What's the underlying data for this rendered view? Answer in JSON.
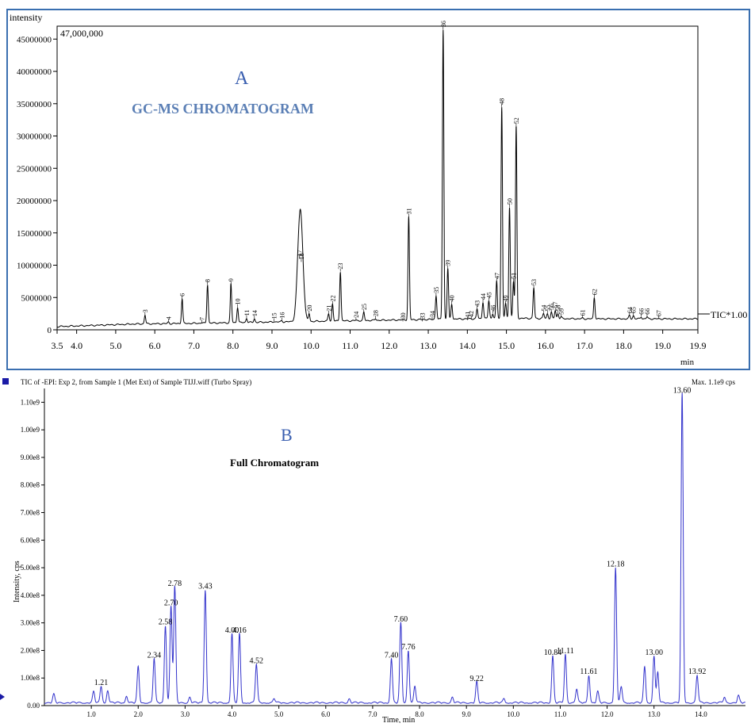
{
  "panel_a": {
    "letter": "A",
    "title": "GC-MS CHROMATOGRAM",
    "ylabel": "intensity",
    "max_label": "47,000,000",
    "trace_label": "TIC*1.00",
    "xunit": "min",
    "accent_color": "#5b7fb5",
    "border_color": "#3a6fb0",
    "yticks": [
      {
        "value": 0,
        "label": "0"
      },
      {
        "value": 5000000,
        "label": "5000000"
      },
      {
        "value": 10000000,
        "label": "10000000"
      },
      {
        "value": 15000000,
        "label": "15000000"
      },
      {
        "value": 20000000,
        "label": "20000000"
      },
      {
        "value": 25000000,
        "label": "25000000"
      },
      {
        "value": 30000000,
        "label": "30000000"
      },
      {
        "value": 35000000,
        "label": "35000000"
      },
      {
        "value": 40000000,
        "label": "40000000"
      },
      {
        "value": 45000000,
        "label": "45000000"
      }
    ],
    "xticks": [
      {
        "value": 3.5,
        "label": "3.5"
      },
      {
        "value": 4.0,
        "label": "4.0"
      },
      {
        "value": 5.0,
        "label": "5.0"
      },
      {
        "value": 6.0,
        "label": "6.0"
      },
      {
        "value": 7.0,
        "label": "7.0"
      },
      {
        "value": 8.0,
        "label": "8.0"
      },
      {
        "value": 9.0,
        "label": "9.0"
      },
      {
        "value": 10.0,
        "label": "10.0"
      },
      {
        "value": 11.0,
        "label": "11.0"
      },
      {
        "value": 12.0,
        "label": "12.0"
      },
      {
        "value": 13.0,
        "label": "13.0"
      },
      {
        "value": 14.0,
        "label": "14.0"
      },
      {
        "value": 15.0,
        "label": "15.0"
      },
      {
        "value": 16.0,
        "label": "16.0"
      },
      {
        "value": 17.0,
        "label": "17.0"
      },
      {
        "value": 18.0,
        "label": "18.0"
      },
      {
        "value": 19.0,
        "label": "19.0"
      },
      {
        "value": 19.9,
        "label": "19.9"
      }
    ]
  },
  "panel_b": {
    "letter": "B",
    "header": "TIC of -EPI: Exp 2, from Sample 1 (Met Ext) of Sample TIJJ.wiff (Turbo Spray)",
    "max_text": "Max. 1.1e9 cps",
    "title": "Full Chromatogram",
    "ylabel": "Intensity, cps",
    "xlabel": "Time, min",
    "line_color": "#3333cc",
    "yticks": [
      {
        "value": 0,
        "label": "0.00"
      },
      {
        "value": 100000000,
        "label": "1.00e8"
      },
      {
        "value": 200000000,
        "label": "2.00e8"
      },
      {
        "value": 300000000,
        "label": "3.00e8"
      },
      {
        "value": 400000000,
        "label": "4.00e8"
      },
      {
        "value": 500000000,
        "label": "5.00e8"
      },
      {
        "value": 600000000,
        "label": "6.00e8"
      },
      {
        "value": 700000000,
        "label": "7.00e8"
      },
      {
        "value": 800000000,
        "label": "8.00e8"
      },
      {
        "value": 900000000,
        "label": "9.00e8"
      },
      {
        "value": 1000000000,
        "label": "1.00e9"
      },
      {
        "value": 1100000000,
        "label": "1.10e9"
      }
    ],
    "xticks": [
      {
        "value": 1.0,
        "label": "1.0"
      },
      {
        "value": 2.0,
        "label": "2.0"
      },
      {
        "value": 3.0,
        "label": "3.0"
      },
      {
        "value": 4.0,
        "label": "4.0"
      },
      {
        "value": 5.0,
        "label": "5.0"
      },
      {
        "value": 6.0,
        "label": "6.0"
      },
      {
        "value": 7.0,
        "label": "7.0"
      },
      {
        "value": 8.0,
        "label": "8.0"
      },
      {
        "value": 9.0,
        "label": "9.0"
      },
      {
        "value": 10.0,
        "label": "10.0"
      },
      {
        "value": 11.0,
        "label": "11.0"
      },
      {
        "value": 12.0,
        "label": "12.0"
      },
      {
        "value": 13.0,
        "label": "13.0"
      },
      {
        "value": 14.0,
        "label": "14.0"
      }
    ]
  },
  "chart_data": [
    {
      "type": "line",
      "title": "GC-MS CHROMATOGRAM",
      "xlabel": "min",
      "ylabel": "intensity",
      "xlim": [
        3.5,
        19.9
      ],
      "ylim": [
        0,
        47000000
      ],
      "grid": false,
      "baseline": [
        [
          3.5,
          500000
        ],
        [
          4.5,
          700000
        ],
        [
          5.5,
          900000
        ],
        [
          7.0,
          1000000
        ],
        [
          9.0,
          1200000
        ],
        [
          11.0,
          1400000
        ],
        [
          13.0,
          1600000
        ],
        [
          15.0,
          1800000
        ],
        [
          17.0,
          1700000
        ],
        [
          19.9,
          1700000
        ]
      ],
      "peaks": [
        {
          "label": "3",
          "x": 5.75,
          "y": 2300000
        },
        {
          "label": "4",
          "x": 6.35,
          "y": 1200000
        },
        {
          "label": "6",
          "x": 6.7,
          "y": 4800000
        },
        {
          "label": "7",
          "x": 7.2,
          "y": 1100000
        },
        {
          "label": "8",
          "x": 7.35,
          "y": 7000000
        },
        {
          "label": "9",
          "x": 7.95,
          "y": 7100000
        },
        {
          "label": "10",
          "x": 8.12,
          "y": 3500000
        },
        {
          "label": "11",
          "x": 8.35,
          "y": 1800000
        },
        {
          "label": "14",
          "x": 8.55,
          "y": 1700000
        },
        {
          "label": "15",
          "x": 9.05,
          "y": 1300000
        },
        {
          "label": "16",
          "x": 9.25,
          "y": 1400000
        },
        {
          "label": "17",
          "x": 9.7,
          "y": 11000000
        },
        {
          "label": "18",
          "x": 9.75,
          "y": 10500000
        },
        {
          "label": "20",
          "x": 9.95,
          "y": 2500000
        },
        {
          "label": "21",
          "x": 10.45,
          "y": 2500000
        },
        {
          "label": "22",
          "x": 10.55,
          "y": 4000000
        },
        {
          "label": "23",
          "x": 10.75,
          "y": 9000000
        },
        {
          "label": "24",
          "x": 11.15,
          "y": 1500000
        },
        {
          "label": "25",
          "x": 11.35,
          "y": 2700000
        },
        {
          "label": "28",
          "x": 11.65,
          "y": 1700000
        },
        {
          "label": "30",
          "x": 12.35,
          "y": 1300000
        },
        {
          "label": "31",
          "x": 12.5,
          "y": 17500000
        },
        {
          "label": "33",
          "x": 12.85,
          "y": 1300000
        },
        {
          "label": "34",
          "x": 13.1,
          "y": 1600000
        },
        {
          "label": "35",
          "x": 13.2,
          "y": 5300000
        },
        {
          "label": "36",
          "x": 13.38,
          "y": 46500000
        },
        {
          "label": "39",
          "x": 13.5,
          "y": 9500000
        },
        {
          "label": "40",
          "x": 13.6,
          "y": 4000000
        },
        {
          "label": "41",
          "x": 14.0,
          "y": 1500000
        },
        {
          "label": "42",
          "x": 14.1,
          "y": 1600000
        },
        {
          "label": "43",
          "x": 14.25,
          "y": 3200000
        },
        {
          "label": "44",
          "x": 14.4,
          "y": 4300000
        },
        {
          "label": "45",
          "x": 14.55,
          "y": 4500000
        },
        {
          "label": "46",
          "x": 14.65,
          "y": 2500000
        },
        {
          "label": "47",
          "x": 14.75,
          "y": 7500000
        },
        {
          "label": "48",
          "x": 14.88,
          "y": 34500000
        },
        {
          "label": "49",
          "x": 14.98,
          "y": 4000000
        },
        {
          "label": "50",
          "x": 15.08,
          "y": 19000000
        },
        {
          "label": "51",
          "x": 15.18,
          "y": 7500000
        },
        {
          "label": "52",
          "x": 15.25,
          "y": 31500000
        },
        {
          "label": "53",
          "x": 15.7,
          "y": 6500000
        },
        {
          "label": "54",
          "x": 15.95,
          "y": 2500000
        },
        {
          "label": "55",
          "x": 16.05,
          "y": 2500000
        },
        {
          "label": "56",
          "x": 16.15,
          "y": 2700000
        },
        {
          "label": "57",
          "x": 16.25,
          "y": 3000000
        },
        {
          "label": "58",
          "x": 16.32,
          "y": 2500000
        },
        {
          "label": "59",
          "x": 16.4,
          "y": 2000000
        },
        {
          "label": "61",
          "x": 16.95,
          "y": 1800000
        },
        {
          "label": "62",
          "x": 17.25,
          "y": 5000000
        },
        {
          "label": "64",
          "x": 18.15,
          "y": 2200000
        },
        {
          "label": "65",
          "x": 18.25,
          "y": 2200000
        },
        {
          "label": "66",
          "x": 18.45,
          "y": 2000000
        },
        {
          "label": "66",
          "x": 18.6,
          "y": 2000000
        },
        {
          "label": "67",
          "x": 18.9,
          "y": 1700000
        }
      ]
    },
    {
      "type": "line",
      "title": "Full Chromatogram",
      "xlabel": "Time, min",
      "ylabel": "Intensity, cps",
      "xlim": [
        0,
        14.95
      ],
      "ylim": [
        0,
        1150000000
      ],
      "grid": false,
      "peaks": [
        {
          "x": 0.2,
          "y": 30000000,
          "label": ""
        },
        {
          "x": 1.05,
          "y": 40000000,
          "label": ""
        },
        {
          "x": 1.21,
          "y": 60000000,
          "label": "1.21"
        },
        {
          "x": 1.35,
          "y": 45000000,
          "label": ""
        },
        {
          "x": 1.75,
          "y": 25000000,
          "label": ""
        },
        {
          "x": 2.0,
          "y": 130000000,
          "label": ""
        },
        {
          "x": 2.34,
          "y": 160000000,
          "label": "2.34"
        },
        {
          "x": 2.58,
          "y": 280000000,
          "label": "2.58"
        },
        {
          "x": 2.7,
          "y": 350000000,
          "label": "2.70"
        },
        {
          "x": 2.78,
          "y": 420000000,
          "label": "2.78"
        },
        {
          "x": 3.1,
          "y": 20000000,
          "label": ""
        },
        {
          "x": 3.43,
          "y": 410000000,
          "label": "3.43"
        },
        {
          "x": 4.0,
          "y": 250000000,
          "label": "4.00"
        },
        {
          "x": 4.16,
          "y": 250000000,
          "label": "4.16"
        },
        {
          "x": 4.52,
          "y": 140000000,
          "label": "4.52"
        },
        {
          "x": 4.9,
          "y": 15000000,
          "label": ""
        },
        {
          "x": 6.5,
          "y": 15000000,
          "label": ""
        },
        {
          "x": 7.4,
          "y": 160000000,
          "label": "7.40"
        },
        {
          "x": 7.6,
          "y": 290000000,
          "label": "7.60"
        },
        {
          "x": 7.76,
          "y": 190000000,
          "label": "7.76"
        },
        {
          "x": 7.9,
          "y": 60000000,
          "label": ""
        },
        {
          "x": 8.7,
          "y": 20000000,
          "label": ""
        },
        {
          "x": 9.22,
          "y": 75000000,
          "label": "9.22"
        },
        {
          "x": 9.8,
          "y": 15000000,
          "label": ""
        },
        {
          "x": 10.84,
          "y": 170000000,
          "label": "10.84"
        },
        {
          "x": 11.11,
          "y": 175000000,
          "label": "11.11"
        },
        {
          "x": 11.35,
          "y": 50000000,
          "label": ""
        },
        {
          "x": 11.61,
          "y": 100000000,
          "label": "11.61"
        },
        {
          "x": 11.8,
          "y": 40000000,
          "label": ""
        },
        {
          "x": 12.18,
          "y": 490000000,
          "label": "12.18"
        },
        {
          "x": 12.3,
          "y": 60000000,
          "label": ""
        },
        {
          "x": 12.8,
          "y": 130000000,
          "label": ""
        },
        {
          "x": 13.0,
          "y": 170000000,
          "label": "13.00"
        },
        {
          "x": 13.08,
          "y": 110000000,
          "label": ""
        },
        {
          "x": 13.6,
          "y": 1120000000,
          "label": "13.60"
        },
        {
          "x": 13.92,
          "y": 100000000,
          "label": "13.92"
        },
        {
          "x": 14.5,
          "y": 20000000,
          "label": ""
        },
        {
          "x": 14.8,
          "y": 25000000,
          "label": ""
        }
      ]
    }
  ]
}
